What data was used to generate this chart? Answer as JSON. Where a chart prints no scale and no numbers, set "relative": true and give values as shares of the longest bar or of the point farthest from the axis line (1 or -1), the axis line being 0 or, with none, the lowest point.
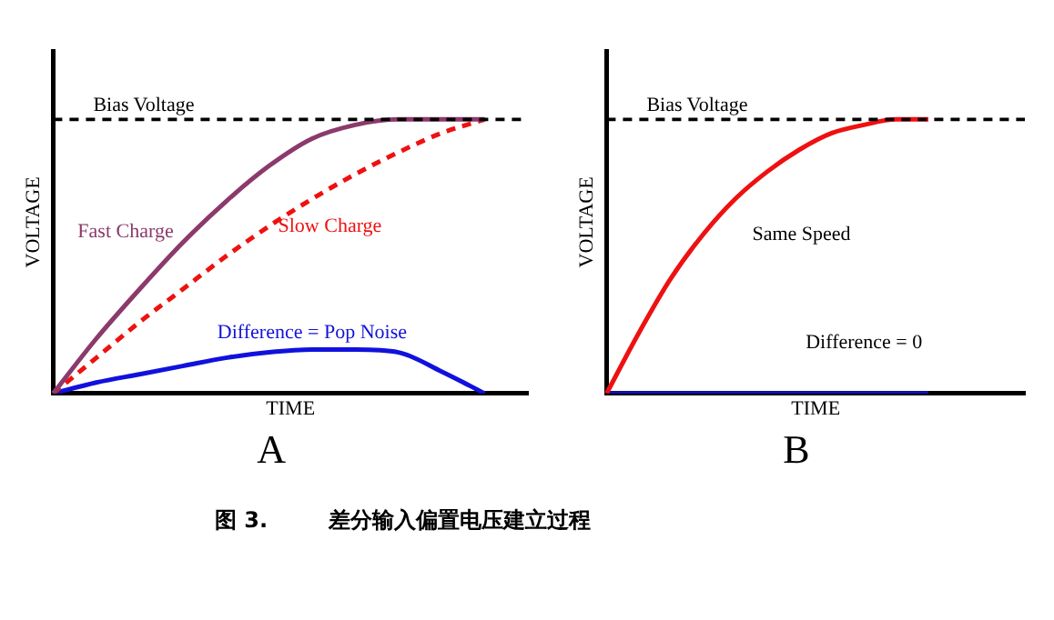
{
  "chart_data": [
    {
      "type": "line",
      "relative": true,
      "title": "A",
      "xlabel": "TIME",
      "ylabel": "VOLTAGE",
      "categories": [
        null,
        null,
        null,
        null,
        null,
        null,
        null,
        null,
        null,
        null,
        null,
        null
      ],
      "series": [
        {
          "name": "Fast Charge",
          "color": "#8b3a6b",
          "values": [
            0,
            0.2,
            0.38,
            0.55,
            0.7,
            0.83,
            0.93,
            0.98,
            1,
            1,
            1,
            null
          ]
        },
        {
          "name": "Slow Charge",
          "color": "#ee1111",
          "line_style": "dashed",
          "values": [
            0,
            0.13,
            0.26,
            0.38,
            0.5,
            0.61,
            0.71,
            0.8,
            0.88,
            0.95,
            1,
            null
          ]
        },
        {
          "name": "Difference = Pop Noise",
          "color": "#1111dd",
          "values": [
            0,
            0.04,
            0.07,
            0.1,
            0.13,
            0.15,
            0.16,
            0.16,
            0.15,
            0.08,
            0,
            null
          ]
        }
      ],
      "ref_lines": [
        {
          "axis": "y",
          "value": 1,
          "label": "Bias Voltage",
          "color": "#000000",
          "line_style": "dashed"
        }
      ],
      "grid": false,
      "legend": false,
      "marker": "none",
      "line_style": "solid",
      "annotations": [
        "图 3.        差分输入偏置电压建立过程"
      ]
    },
    {
      "type": "line",
      "relative": true,
      "title": "B",
      "xlabel": "TIME",
      "ylabel": "VOLTAGE",
      "categories": [
        null,
        null,
        null,
        null,
        null,
        null,
        null,
        null,
        null,
        null,
        null,
        null,
        null,
        null
      ],
      "series": [
        {
          "name": "Same Speed",
          "color": "#ee1111",
          "values": [
            0,
            0.22,
            0.42,
            0.58,
            0.71,
            0.81,
            0.89,
            0.95,
            0.98,
            1,
            1,
            null,
            null,
            null
          ]
        },
        {
          "name": "Difference = 0",
          "color": "#1111cc",
          "values": [
            0,
            0,
            0,
            0,
            0,
            0,
            0,
            0,
            0,
            0,
            0,
            null,
            null,
            null
          ]
        }
      ],
      "ref_lines": [
        {
          "axis": "y",
          "value": 1,
          "label": "Bias Voltage",
          "color": "#000000",
          "line_style": "dashed"
        }
      ],
      "grid": false,
      "legend": false,
      "marker": "none",
      "line_style": "solid"
    }
  ]
}
